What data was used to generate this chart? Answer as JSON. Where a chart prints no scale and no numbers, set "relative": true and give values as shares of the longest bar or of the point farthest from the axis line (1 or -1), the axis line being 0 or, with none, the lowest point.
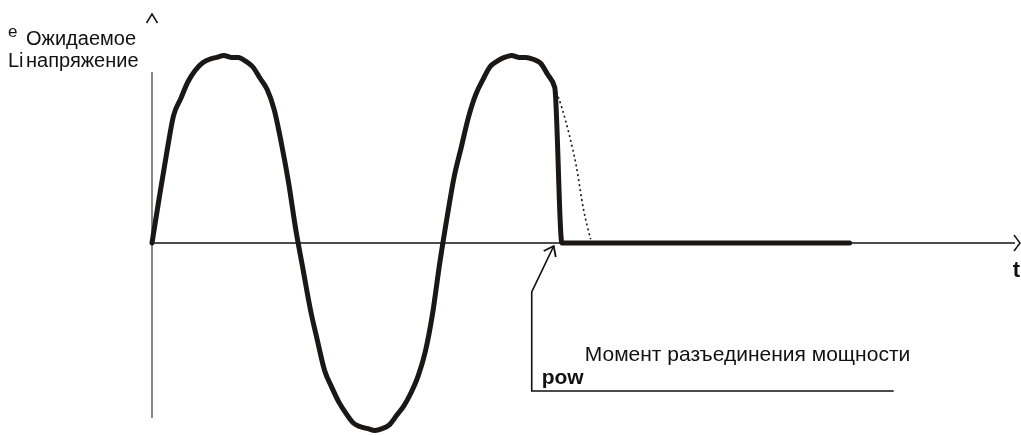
{
  "chart_data": {
    "type": "line",
    "xlabel": "t",
    "ylabel": "Ожидаемое напряжение",
    "relative": true,
    "annotations": [
      "Момент разъединения мощности",
      "e",
      "Li",
      "pow"
    ],
    "categories": [
      null,
      null,
      null,
      null,
      null,
      null,
      null,
      null,
      null,
      null,
      null,
      null,
      null,
      null,
      null,
      null,
      null,
      null,
      null,
      null,
      null,
      null,
      null,
      null,
      null,
      null,
      null,
      null,
      null,
      null,
      null,
      null,
      null,
      null,
      null,
      null,
      null,
      null,
      null,
      null,
      null,
      null,
      null,
      null,
      null,
      null,
      null,
      null,
      null,
      null,
      null,
      null,
      null,
      null,
      null,
      null,
      null,
      null,
      null,
      null,
      null,
      null,
      null,
      null,
      null,
      null,
      null,
      null,
      null,
      null,
      null,
      null,
      null,
      null,
      null,
      null,
      null,
      null,
      null,
      null,
      null,
      null,
      null,
      null,
      null,
      null,
      null,
      null,
      null,
      null,
      null,
      null,
      null,
      null,
      null,
      null,
      null,
      null,
      null,
      null,
      null,
      null,
      null,
      null,
      null,
      null,
      null,
      null,
      null,
      null,
      null,
      null,
      null,
      null,
      null,
      null,
      null,
      null,
      null,
      null,
      null
    ],
    "series": [
      {
        "color": "#1a1714",
        "line_style": "solid",
        "values": [
          0,
          0.24,
          0.47,
          0.68,
          0.77,
          0.86,
          0.92,
          0.96,
          0.98,
          0.99,
          1,
          0.99,
          0.99,
          0.97,
          0.94,
          0.88,
          0.82,
          0.71,
          0.53,
          0.32,
          0.07,
          -0.14,
          -0.35,
          -0.52,
          -0.68,
          -0.77,
          -0.85,
          -0.91,
          -0.96,
          -0.98,
          -0.99,
          -1,
          -0.99,
          -0.97,
          -0.92,
          -0.87,
          -0.8,
          -0.71,
          -0.58,
          -0.38,
          -0.11,
          0.13,
          0.35,
          0.51,
          0.67,
          0.79,
          0.87,
          0.94,
          0.97,
          0.99,
          1,
          0.99,
          0.99,
          0.98,
          0.96,
          0.9,
          0.83,
          0,
          0,
          0,
          0,
          0,
          0,
          0,
          0,
          0,
          0,
          0,
          0,
          0,
          0,
          0,
          0,
          0,
          0,
          0,
          0,
          0,
          0,
          0,
          0,
          0,
          0,
          0,
          0,
          0,
          0,
          0,
          0,
          0,
          0,
          0,
          0,
          0,
          0,
          0,
          0,
          0,
          null,
          null,
          null,
          null,
          null,
          null,
          null,
          null,
          null,
          null,
          null,
          null,
          null,
          null,
          null,
          null,
          null,
          null,
          null,
          null,
          null,
          null,
          null
        ]
      },
      {
        "color": "#1a1714",
        "line_style": "dotted",
        "values": [
          null,
          null,
          null,
          null,
          null,
          null,
          null,
          null,
          null,
          null,
          null,
          null,
          null,
          null,
          null,
          null,
          null,
          null,
          null,
          null,
          null,
          null,
          null,
          null,
          null,
          null,
          null,
          null,
          null,
          null,
          null,
          null,
          null,
          null,
          null,
          null,
          null,
          null,
          null,
          null,
          null,
          null,
          null,
          null,
          null,
          null,
          null,
          null,
          null,
          null,
          null,
          null,
          null,
          null,
          null,
          null,
          0.83,
          0.72,
          0.58,
          0.41,
          0.18,
          0.02,
          null,
          null,
          null,
          null,
          null,
          null,
          null,
          null,
          null,
          null,
          null,
          null,
          null,
          null,
          null,
          null,
          null,
          null,
          null,
          null,
          null,
          null,
          null,
          null,
          null,
          null,
          null,
          null,
          null,
          null,
          null,
          null,
          null,
          null,
          null,
          null,
          null,
          null,
          null,
          null,
          null,
          null,
          null,
          null,
          null,
          null,
          null,
          null,
          null,
          null,
          null,
          null,
          null,
          null,
          null,
          null,
          null,
          null,
          null
        ]
      }
    ]
  }
}
